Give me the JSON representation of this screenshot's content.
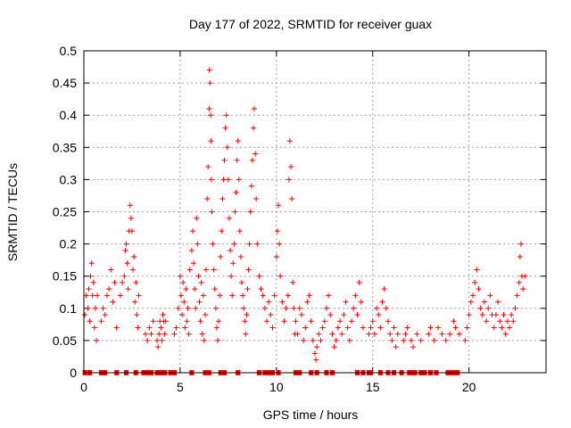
{
  "chart_data": {
    "type": "scatter",
    "title": "Day 177 of 2022, SRMTID for receiver guax",
    "xlabel": "GPS time / hours",
    "ylabel": "SRMTID / TECUs",
    "xlim": [
      0,
      24
    ],
    "ylim": [
      0,
      0.5
    ],
    "grid": true,
    "marker": "+",
    "color": "#ff0000",
    "x_ticks": [
      0,
      5,
      10,
      15,
      20
    ],
    "x_tick_labels": [
      "0",
      "5",
      "10",
      "15",
      "20"
    ],
    "y_ticks": [
      0,
      0.05,
      0.1,
      0.15,
      0.2,
      0.25,
      0.3,
      0.35,
      0.4,
      0.45,
      0.5
    ],
    "y_tick_labels": [
      "0",
      "0.05",
      "0.1",
      "0.15",
      "0.2",
      "0.25",
      "0.3",
      "0.35",
      "0.4",
      "0.45",
      "0.5"
    ],
    "series": [
      {
        "name": "SRMTID",
        "points": [
          [
            0.05,
            0.09
          ],
          [
            0.12,
            0.12
          ],
          [
            0.2,
            0.1
          ],
          [
            0.25,
            0.13
          ],
          [
            0.3,
            0.08
          ],
          [
            0.35,
            0.15
          ],
          [
            0.4,
            0.17
          ],
          [
            0.45,
            0.12
          ],
          [
            0.5,
            0.14
          ],
          [
            0.55,
            0.07
          ],
          [
            0.6,
            0.1
          ],
          [
            0.65,
            0.05
          ],
          [
            0.7,
            0.12
          ],
          [
            0.9,
            0.08
          ],
          [
            1.0,
            0.1
          ],
          [
            1.1,
            0.09
          ],
          [
            1.2,
            0.12
          ],
          [
            1.3,
            0.13
          ],
          [
            1.4,
            0.16
          ],
          [
            1.5,
            0.11
          ],
          [
            1.6,
            0.14
          ],
          [
            1.7,
            0.07
          ],
          [
            1.9,
            0.12
          ],
          [
            2.0,
            0.14
          ],
          [
            2.1,
            0.15
          ],
          [
            2.15,
            0.19
          ],
          [
            2.2,
            0.2
          ],
          [
            2.25,
            0.17
          ],
          [
            2.3,
            0.13
          ],
          [
            2.35,
            0.22
          ],
          [
            2.4,
            0.26
          ],
          [
            2.45,
            0.24
          ],
          [
            2.5,
            0.22
          ],
          [
            2.55,
            0.16
          ],
          [
            2.6,
            0.18
          ],
          [
            2.65,
            0.11
          ],
          [
            2.7,
            0.14
          ],
          [
            2.75,
            0.09
          ],
          [
            2.8,
            0.07
          ],
          [
            2.85,
            0.12
          ],
          [
            3.2,
            0.06
          ],
          [
            3.3,
            0.05
          ],
          [
            3.4,
            0.07
          ],
          [
            3.5,
            0.06
          ],
          [
            3.6,
            0.08
          ],
          [
            3.8,
            0.05
          ],
          [
            3.85,
            0.04
          ],
          [
            3.9,
            0.06
          ],
          [
            3.95,
            0.08
          ],
          [
            4.0,
            0.07
          ],
          [
            4.05,
            0.05
          ],
          [
            4.1,
            0.09
          ],
          [
            4.15,
            0.08
          ],
          [
            4.2,
            0.06
          ],
          [
            4.25,
            0.08
          ],
          [
            4.7,
            0.06
          ],
          [
            4.8,
            0.07
          ],
          [
            4.9,
            0.1
          ],
          [
            5.0,
            0.15
          ],
          [
            5.05,
            0.12
          ],
          [
            5.1,
            0.09
          ],
          [
            5.15,
            0.14
          ],
          [
            5.2,
            0.11
          ],
          [
            5.25,
            0.07
          ],
          [
            5.3,
            0.13
          ],
          [
            5.35,
            0.08
          ],
          [
            5.4,
            0.1
          ],
          [
            5.45,
            0.06
          ],
          [
            5.5,
            0.16
          ],
          [
            5.6,
            0.19
          ],
          [
            5.65,
            0.22
          ],
          [
            5.7,
            0.17
          ],
          [
            5.75,
            0.13
          ],
          [
            5.8,
            0.1
          ],
          [
            5.85,
            0.24
          ],
          [
            5.9,
            0.2
          ],
          [
            5.95,
            0.15
          ],
          [
            6.0,
            0.11
          ],
          [
            6.05,
            0.08
          ],
          [
            6.1,
            0.14
          ],
          [
            6.15,
            0.06
          ],
          [
            6.2,
            0.12
          ],
          [
            6.25,
            0.05
          ],
          [
            6.3,
            0.09
          ],
          [
            6.35,
            0.16
          ],
          [
            6.4,
            0.27
          ],
          [
            6.45,
            0.32
          ],
          [
            6.5,
            0.41
          ],
          [
            6.52,
            0.47
          ],
          [
            6.55,
            0.45
          ],
          [
            6.58,
            0.4
          ],
          [
            6.6,
            0.36
          ],
          [
            6.62,
            0.3
          ],
          [
            6.65,
            0.25
          ],
          [
            6.7,
            0.2
          ],
          [
            6.75,
            0.16
          ],
          [
            6.8,
            0.13
          ],
          [
            6.85,
            0.1
          ],
          [
            6.9,
            0.07
          ],
          [
            6.95,
            0.05
          ],
          [
            7.0,
            0.08
          ],
          [
            7.05,
            0.12
          ],
          [
            7.1,
            0.18
          ],
          [
            7.15,
            0.22
          ],
          [
            7.2,
            0.27
          ],
          [
            7.25,
            0.3
          ],
          [
            7.3,
            0.33
          ],
          [
            7.35,
            0.38
          ],
          [
            7.4,
            0.4
          ],
          [
            7.45,
            0.35
          ],
          [
            7.5,
            0.3
          ],
          [
            7.55,
            0.24
          ],
          [
            7.6,
            0.19
          ],
          [
            7.65,
            0.15
          ],
          [
            7.7,
            0.12
          ],
          [
            7.75,
            0.17
          ],
          [
            7.8,
            0.2
          ],
          [
            7.85,
            0.25
          ],
          [
            7.9,
            0.28
          ],
          [
            7.95,
            0.33
          ],
          [
            8.0,
            0.36
          ],
          [
            8.05,
            0.3
          ],
          [
            8.1,
            0.22
          ],
          [
            8.15,
            0.18
          ],
          [
            8.2,
            0.14
          ],
          [
            8.25,
            0.12
          ],
          [
            8.3,
            0.1
          ],
          [
            8.35,
            0.08
          ],
          [
            8.4,
            0.06
          ],
          [
            8.45,
            0.09
          ],
          [
            8.5,
            0.13
          ],
          [
            8.55,
            0.16
          ],
          [
            8.6,
            0.2
          ],
          [
            8.65,
            0.25
          ],
          [
            8.7,
            0.29
          ],
          [
            8.75,
            0.33
          ],
          [
            8.8,
            0.38
          ],
          [
            8.85,
            0.41
          ],
          [
            8.9,
            0.34
          ],
          [
            8.95,
            0.27
          ],
          [
            9.0,
            0.2
          ],
          [
            9.1,
            0.15
          ],
          [
            9.2,
            0.13
          ],
          [
            9.3,
            0.12
          ],
          [
            9.4,
            0.1
          ],
          [
            9.5,
            0.08
          ],
          [
            9.6,
            0.11
          ],
          [
            9.7,
            0.09
          ],
          [
            9.8,
            0.07
          ],
          [
            9.9,
            0.12
          ],
          [
            10.0,
            0.18
          ],
          [
            10.05,
            0.22
          ],
          [
            10.1,
            0.26
          ],
          [
            10.15,
            0.2
          ],
          [
            10.2,
            0.15
          ],
          [
            10.3,
            0.11
          ],
          [
            10.4,
            0.08
          ],
          [
            10.5,
            0.1
          ],
          [
            10.6,
            0.12
          ],
          [
            10.65,
            0.3
          ],
          [
            10.7,
            0.36
          ],
          [
            10.75,
            0.32
          ],
          [
            10.8,
            0.27
          ],
          [
            10.85,
            0.14
          ],
          [
            10.9,
            0.1
          ],
          [
            10.95,
            0.06
          ],
          [
            11.0,
            0.08
          ],
          [
            11.1,
            0.06
          ],
          [
            11.2,
            0.1
          ],
          [
            11.3,
            0.09
          ],
          [
            11.4,
            0.05
          ],
          [
            11.5,
            0.07
          ],
          [
            11.6,
            0.11
          ],
          [
            11.7,
            0.12
          ],
          [
            11.8,
            0.08
          ],
          [
            11.9,
            0.05
          ],
          [
            12.0,
            0.03
          ],
          [
            12.05,
            0.02
          ],
          [
            12.1,
            0.04
          ],
          [
            12.2,
            0.06
          ],
          [
            12.3,
            0.05
          ],
          [
            12.4,
            0.07
          ],
          [
            12.5,
            0.08
          ],
          [
            12.6,
            0.1
          ],
          [
            12.7,
            0.12
          ],
          [
            12.8,
            0.09
          ],
          [
            12.9,
            0.06
          ],
          [
            13.0,
            0.04
          ],
          [
            13.1,
            0.05
          ],
          [
            13.2,
            0.07
          ],
          [
            13.3,
            0.08
          ],
          [
            13.4,
            0.06
          ],
          [
            13.5,
            0.09
          ],
          [
            13.6,
            0.11
          ],
          [
            13.7,
            0.07
          ],
          [
            13.8,
            0.05
          ],
          [
            13.9,
            0.08
          ],
          [
            14.0,
            0.1
          ],
          [
            14.1,
            0.12
          ],
          [
            14.2,
            0.09
          ],
          [
            14.3,
            0.14
          ],
          [
            14.4,
            0.11
          ],
          [
            14.5,
            0.07
          ],
          [
            14.8,
            0.06
          ],
          [
            14.9,
            0.07
          ],
          [
            15.0,
            0.08
          ],
          [
            15.1,
            0.06
          ],
          [
            15.2,
            0.1
          ],
          [
            15.3,
            0.09
          ],
          [
            15.4,
            0.07
          ],
          [
            15.5,
            0.11
          ],
          [
            15.6,
            0.13
          ],
          [
            15.7,
            0.1
          ],
          [
            15.8,
            0.08
          ],
          [
            15.9,
            0.06
          ],
          [
            16.0,
            0.05
          ],
          [
            16.1,
            0.07
          ],
          [
            16.2,
            0.04
          ],
          [
            16.3,
            0.06
          ],
          [
            16.6,
            0.05
          ],
          [
            16.7,
            0.06
          ],
          [
            16.8,
            0.07
          ],
          [
            17.0,
            0.05
          ],
          [
            17.1,
            0.04
          ],
          [
            17.3,
            0.06
          ],
          [
            17.5,
            0.05
          ],
          [
            17.9,
            0.06
          ],
          [
            18.0,
            0.07
          ],
          [
            18.2,
            0.05
          ],
          [
            18.4,
            0.07
          ],
          [
            18.6,
            0.06
          ],
          [
            18.8,
            0.05
          ],
          [
            19.0,
            0.06
          ],
          [
            19.2,
            0.08
          ],
          [
            19.3,
            0.07
          ],
          [
            19.5,
            0.06
          ],
          [
            19.8,
            0.05
          ],
          [
            19.9,
            0.07
          ],
          [
            20.0,
            0.09
          ],
          [
            20.1,
            0.11
          ],
          [
            20.2,
            0.12
          ],
          [
            20.3,
            0.14
          ],
          [
            20.4,
            0.16
          ],
          [
            20.5,
            0.13
          ],
          [
            20.6,
            0.1
          ],
          [
            20.7,
            0.09
          ],
          [
            20.8,
            0.11
          ],
          [
            20.9,
            0.08
          ],
          [
            21.0,
            0.1
          ],
          [
            21.1,
            0.12
          ],
          [
            21.2,
            0.09
          ],
          [
            21.3,
            0.07
          ],
          [
            21.4,
            0.09
          ],
          [
            21.5,
            0.11
          ],
          [
            21.6,
            0.08
          ],
          [
            21.7,
            0.07
          ],
          [
            21.8,
            0.09
          ],
          [
            21.9,
            0.06
          ],
          [
            22.0,
            0.08
          ],
          [
            22.1,
            0.07
          ],
          [
            22.2,
            0.09
          ],
          [
            22.3,
            0.08
          ],
          [
            22.4,
            0.1
          ],
          [
            22.5,
            0.12
          ],
          [
            22.6,
            0.14
          ],
          [
            22.65,
            0.18
          ],
          [
            22.7,
            0.2
          ],
          [
            22.75,
            0.15
          ],
          [
            22.8,
            0.13
          ],
          [
            22.9,
            0.15
          ]
        ],
        "zero_points": [
          0.05,
          0.3,
          0.9,
          1.1,
          1.7,
          2.2,
          2.7,
          3.1,
          3.3,
          3.5,
          3.8,
          4.0,
          4.2,
          4.5,
          4.7,
          5.6,
          6.3,
          6.5,
          7.1,
          7.3,
          8.0,
          9.1,
          9.4,
          9.6,
          9.8,
          10.1,
          11.0,
          11.2,
          11.8,
          12.1,
          12.6,
          12.9,
          14.2,
          14.5,
          14.8,
          14.9,
          15.4,
          15.8,
          16.1,
          16.5,
          16.9,
          17.1,
          17.2,
          17.5,
          17.7,
          18.0,
          18.3,
          18.9,
          19.1,
          19.3,
          19.4
        ]
      }
    ]
  }
}
